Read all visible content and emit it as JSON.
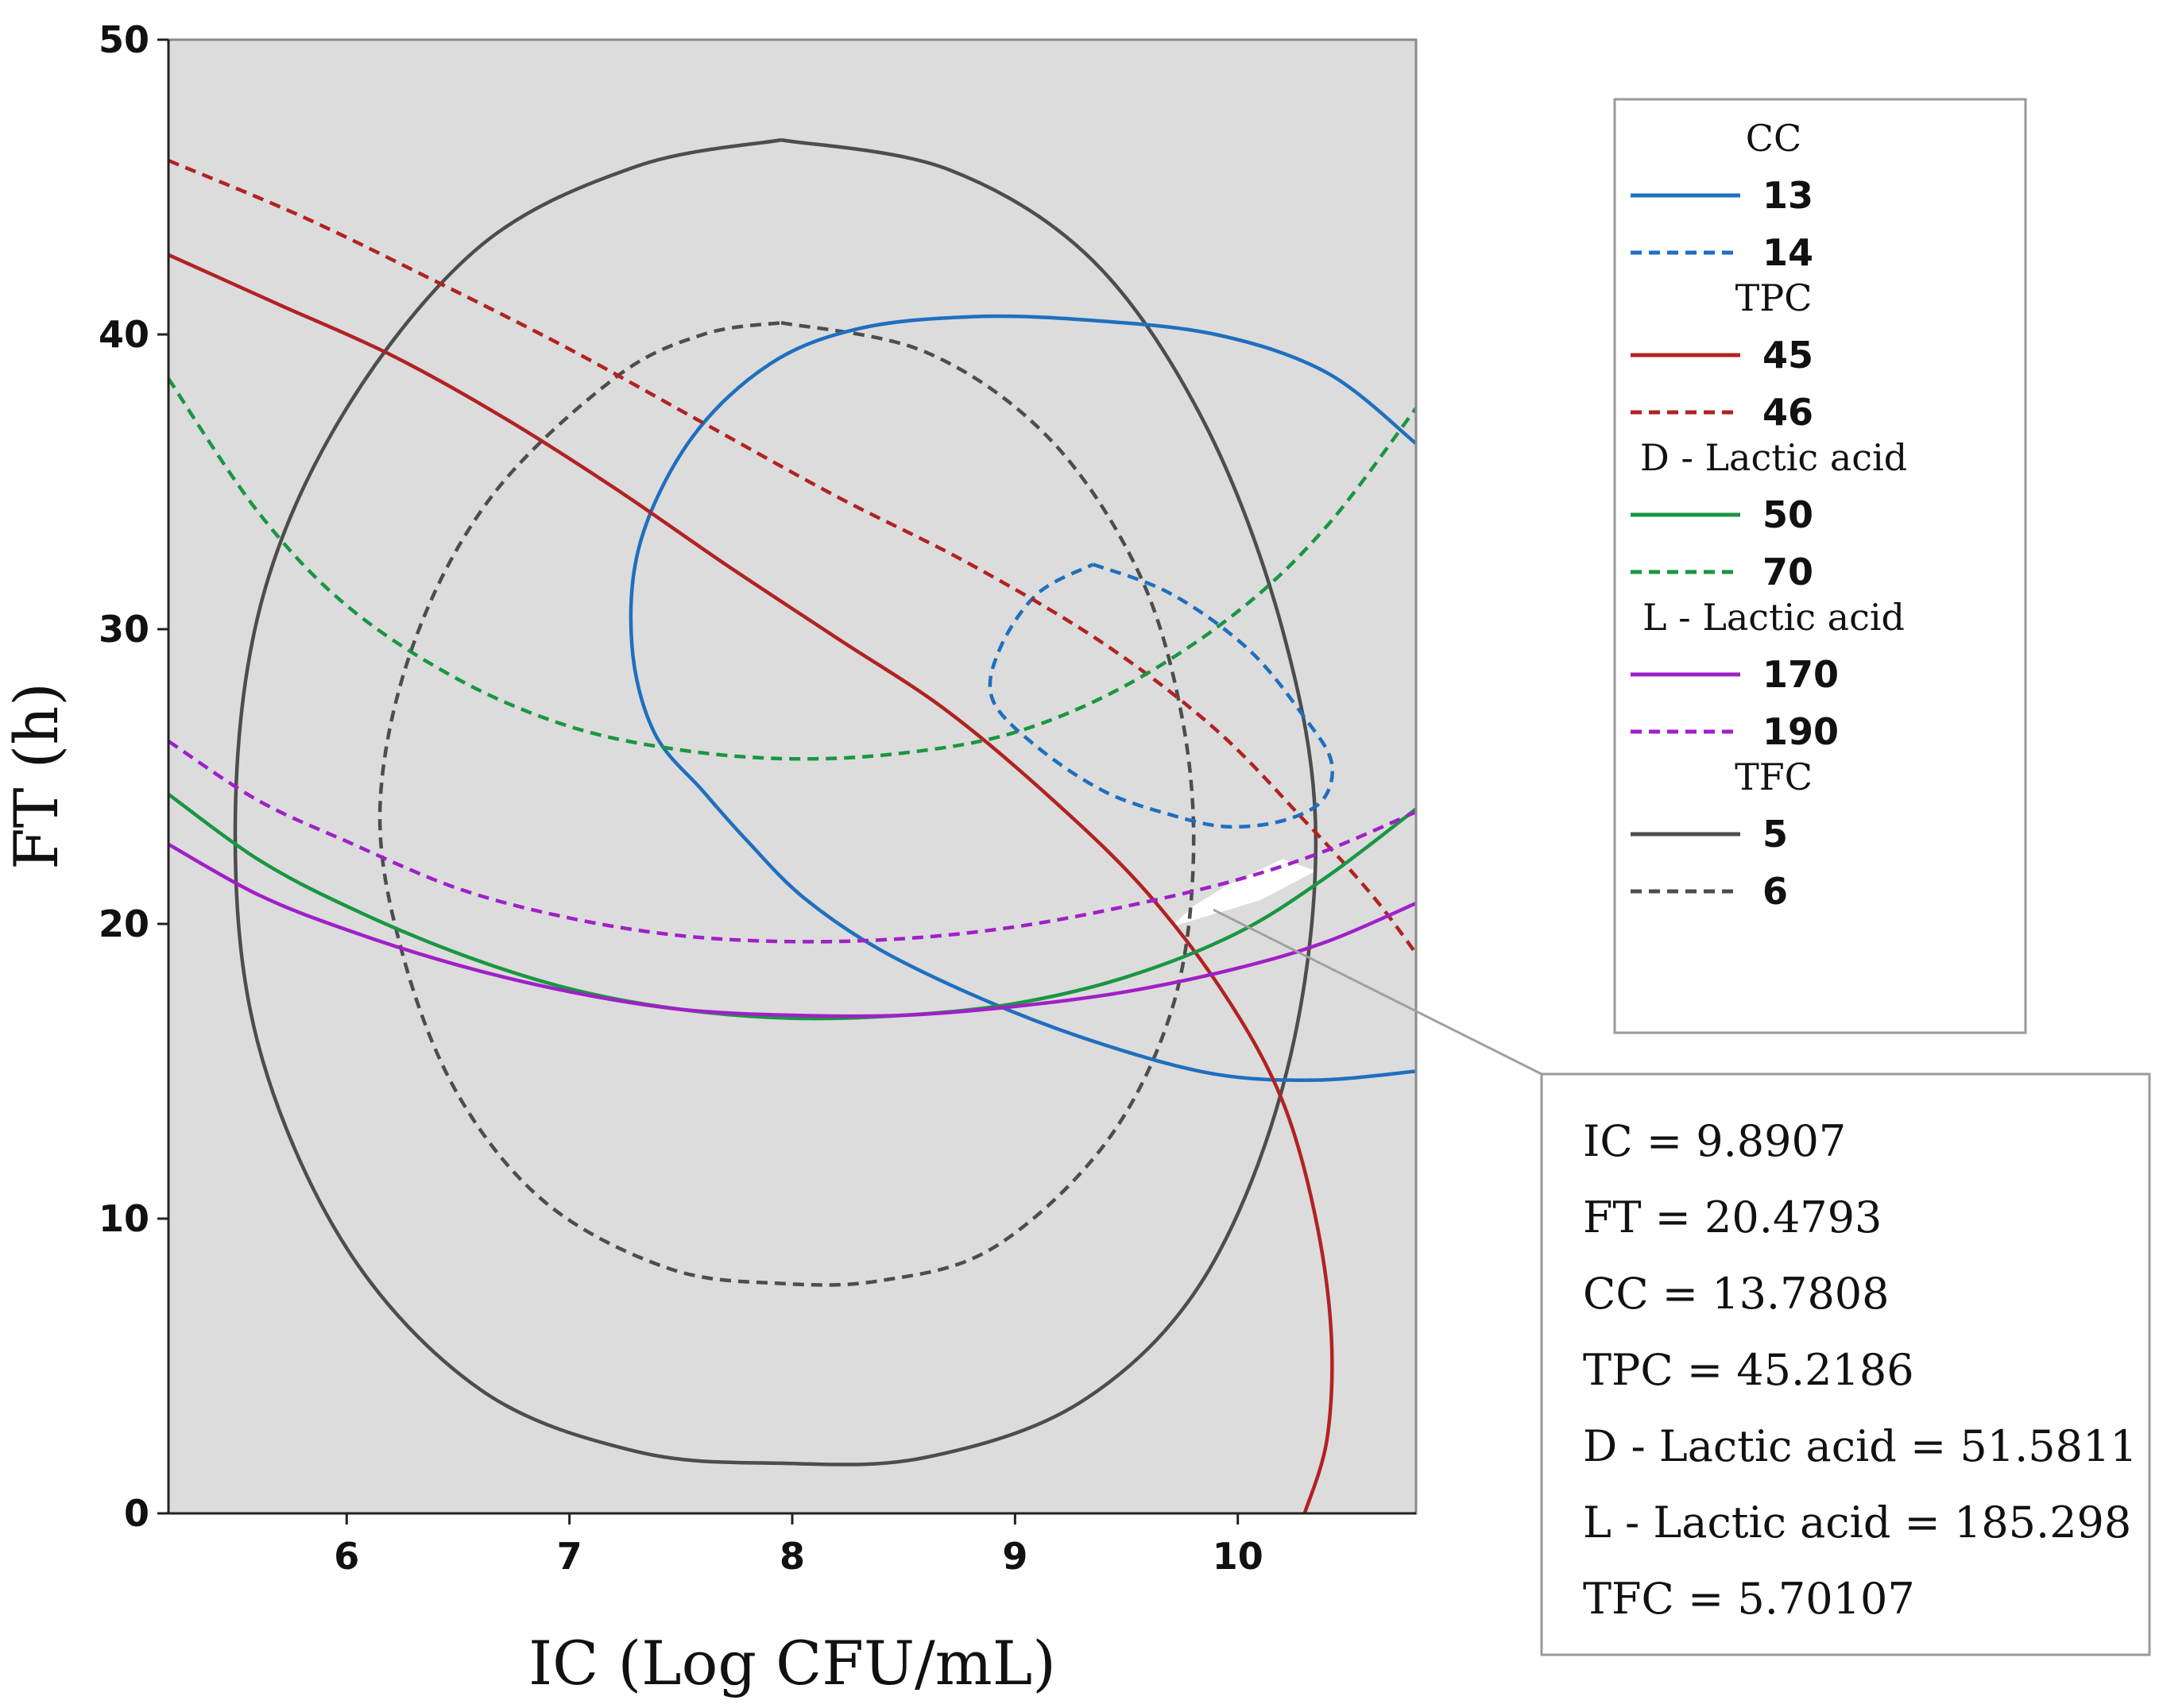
{
  "chart_data": {
    "type": "contour-overlay",
    "xlabel": "IC (Log CFU/mL)",
    "ylabel": "FT (h)",
    "xlim": [
      5.2,
      10.8
    ],
    "ylim": [
      0,
      50
    ],
    "x_ticks": [
      "6",
      "7",
      "8",
      "9",
      "10"
    ],
    "x_tick_values": [
      6,
      7,
      8,
      9,
      10
    ],
    "y_ticks": [
      "0",
      "10",
      "20",
      "30",
      "40",
      "50"
    ],
    "y_tick_values": [
      0,
      10,
      20,
      30,
      40,
      50
    ],
    "grid": false,
    "colors": {
      "cc": "#1f6fbf",
      "tpc": "#b22222",
      "dla": "#1a9641",
      "lla": "#a020c8",
      "tfc": "#4d4d4d",
      "plot_bg": "#dcdcdc"
    },
    "legend": [
      {
        "group": "CC",
        "items": [
          {
            "value": "13",
            "style": "solid"
          },
          {
            "value": "14",
            "style": "dashed"
          }
        ],
        "color": "cc"
      },
      {
        "group": "TPC",
        "items": [
          {
            "value": "45",
            "style": "solid"
          },
          {
            "value": "46",
            "style": "dashed"
          }
        ],
        "color": "tpc"
      },
      {
        "group": "D - Lactic acid",
        "items": [
          {
            "value": "50",
            "style": "solid"
          },
          {
            "value": "70",
            "style": "dashed"
          }
        ],
        "color": "dla"
      },
      {
        "group": "L - Lactic acid",
        "items": [
          {
            "value": "170",
            "style": "solid"
          },
          {
            "value": "190",
            "style": "dashed"
          }
        ],
        "color": "lla"
      },
      {
        "group": "TFC",
        "items": [
          {
            "value": "5",
            "style": "solid"
          },
          {
            "value": "6",
            "style": "dashed"
          }
        ],
        "color": "tfc"
      }
    ],
    "series": [
      {
        "name": "TFC = 5",
        "color": "tfc",
        "style": "solid",
        "points": [
          [
            7.95,
            46.6
          ],
          [
            8.7,
            45.6
          ],
          [
            9.35,
            42.5
          ],
          [
            9.85,
            37
          ],
          [
            10.2,
            30
          ],
          [
            10.35,
            23
          ],
          [
            10.22,
            15
          ],
          [
            9.85,
            8
          ],
          [
            9.3,
            3.8
          ],
          [
            8.6,
            1.9
          ],
          [
            7.95,
            1.7
          ],
          [
            7.3,
            2.1
          ],
          [
            6.6,
            4.2
          ],
          [
            6,
            9
          ],
          [
            5.6,
            16
          ],
          [
            5.5,
            23.5
          ],
          [
            5.62,
            31
          ],
          [
            6,
            37.5
          ],
          [
            6.6,
            43
          ],
          [
            7.3,
            45.7
          ],
          [
            7.95,
            46.6
          ]
        ]
      },
      {
        "name": "TFC = 6",
        "color": "tfc",
        "style": "dashed",
        "points": [
          [
            7.95,
            40.4
          ],
          [
            8.6,
            39.4
          ],
          [
            9.15,
            36.5
          ],
          [
            9.55,
            32
          ],
          [
            9.75,
            27
          ],
          [
            9.8,
            22
          ],
          [
            9.7,
            17
          ],
          [
            9.4,
            12.5
          ],
          [
            8.9,
            9
          ],
          [
            8.4,
            7.9
          ],
          [
            7.95,
            7.8
          ],
          [
            7.45,
            8.3
          ],
          [
            6.9,
            10.5
          ],
          [
            6.5,
            14.2
          ],
          [
            6.25,
            19
          ],
          [
            6.15,
            24
          ],
          [
            6.3,
            29.5
          ],
          [
            6.65,
            34.5
          ],
          [
            7.2,
            38.5
          ],
          [
            7.6,
            40
          ],
          [
            7.95,
            40.4
          ]
        ]
      },
      {
        "name": "CC = 13",
        "color": "cc",
        "style": "solid",
        "points": [
          [
            10.8,
            36.3
          ],
          [
            10.4,
            38.7
          ],
          [
            9.9,
            40
          ],
          [
            9.3,
            40.5
          ],
          [
            8.8,
            40.6
          ],
          [
            8.3,
            40.2
          ],
          [
            7.9,
            39
          ],
          [
            7.55,
            36.5
          ],
          [
            7.32,
            33
          ],
          [
            7.28,
            29.5
          ],
          [
            7.38,
            26.5
          ],
          [
            7.6,
            24.5
          ],
          [
            7.8,
            22.8
          ],
          [
            8.05,
            20.9
          ],
          [
            8.4,
            19.1
          ],
          [
            8.9,
            17.3
          ],
          [
            9.4,
            15.9
          ],
          [
            9.9,
            14.9
          ],
          [
            10.35,
            14.7
          ],
          [
            10.8,
            15
          ]
        ]
      },
      {
        "name": "CC = 14",
        "color": "cc",
        "style": "dashed",
        "points": [
          [
            9.35,
            32.2
          ],
          [
            9.7,
            31.2
          ],
          [
            10.05,
            29.3
          ],
          [
            10.3,
            27
          ],
          [
            10.42,
            25.5
          ],
          [
            10.38,
            24.2
          ],
          [
            10.2,
            23.5
          ],
          [
            9.95,
            23.3
          ],
          [
            9.7,
            23.7
          ],
          [
            9.4,
            24.5
          ],
          [
            9.1,
            26
          ],
          [
            8.9,
            27.6
          ],
          [
            8.93,
            29.3
          ],
          [
            9.1,
            31.2
          ],
          [
            9.35,
            32.2
          ]
        ]
      },
      {
        "name": "TPC = 45",
        "color": "tpc",
        "style": "solid",
        "points": [
          [
            5.2,
            42.7
          ],
          [
            5.7,
            41
          ],
          [
            6.2,
            39.3
          ],
          [
            6.7,
            37.2
          ],
          [
            7.2,
            34.8
          ],
          [
            7.7,
            32.2
          ],
          [
            8.2,
            29.7
          ],
          [
            8.7,
            27.2
          ],
          [
            9.2,
            24
          ],
          [
            9.6,
            21
          ],
          [
            9.95,
            17.5
          ],
          [
            10.2,
            14
          ],
          [
            10.35,
            10
          ],
          [
            10.42,
            6
          ],
          [
            10.4,
            2.5
          ],
          [
            10.3,
            0
          ]
        ]
      },
      {
        "name": "TPC = 46",
        "color": "tpc",
        "style": "dashed",
        "points": [
          [
            5.2,
            45.9
          ],
          [
            5.8,
            44
          ],
          [
            6.4,
            41.8
          ],
          [
            7,
            39.5
          ],
          [
            7.6,
            37
          ],
          [
            8.2,
            34.5
          ],
          [
            8.8,
            32.2
          ],
          [
            9.4,
            29.5
          ],
          [
            9.9,
            26.6
          ],
          [
            10.3,
            23.5
          ],
          [
            10.6,
            21
          ],
          [
            10.8,
            19
          ]
        ]
      },
      {
        "name": "D - Lactic acid = 50",
        "color": "dla",
        "style": "solid",
        "points": [
          [
            5.2,
            24.4
          ],
          [
            5.6,
            22.2
          ],
          [
            6,
            20.6
          ],
          [
            6.5,
            19
          ],
          [
            7,
            17.8
          ],
          [
            7.5,
            17.1
          ],
          [
            8,
            16.8
          ],
          [
            8.5,
            16.9
          ],
          [
            9,
            17.3
          ],
          [
            9.5,
            18.2
          ],
          [
            10,
            19.7
          ],
          [
            10.4,
            21.6
          ],
          [
            10.8,
            23.9
          ]
        ]
      },
      {
        "name": "D - Lactic acid = 70",
        "color": "dla",
        "style": "dashed",
        "points": [
          [
            5.2,
            38.5
          ],
          [
            5.6,
            34
          ],
          [
            6,
            30.8
          ],
          [
            6.5,
            28.3
          ],
          [
            7,
            26.7
          ],
          [
            7.5,
            25.9
          ],
          [
            8,
            25.6
          ],
          [
            8.5,
            25.8
          ],
          [
            9,
            26.5
          ],
          [
            9.5,
            28.1
          ],
          [
            10,
            30.6
          ],
          [
            10.4,
            33.5
          ],
          [
            10.8,
            37.5
          ]
        ]
      },
      {
        "name": "L - Lactic acid = 170",
        "color": "lla",
        "style": "solid",
        "points": [
          [
            5.2,
            22.7
          ],
          [
            5.6,
            21
          ],
          [
            6,
            19.8
          ],
          [
            6.5,
            18.6
          ],
          [
            7,
            17.7
          ],
          [
            7.5,
            17.1
          ],
          [
            8,
            16.9
          ],
          [
            8.5,
            16.9
          ],
          [
            9,
            17.2
          ],
          [
            9.5,
            17.7
          ],
          [
            10,
            18.5
          ],
          [
            10.4,
            19.4
          ],
          [
            10.8,
            20.7
          ]
        ]
      },
      {
        "name": "L - Lactic acid = 190",
        "color": "lla",
        "style": "dashed",
        "points": [
          [
            5.2,
            26.2
          ],
          [
            5.6,
            24.2
          ],
          [
            6,
            22.8
          ],
          [
            6.5,
            21.2
          ],
          [
            7,
            20.2
          ],
          [
            7.5,
            19.6
          ],
          [
            8,
            19.4
          ],
          [
            8.5,
            19.5
          ],
          [
            9,
            19.9
          ],
          [
            9.5,
            20.6
          ],
          [
            10,
            21.5
          ],
          [
            10.4,
            22.5
          ],
          [
            10.8,
            23.8
          ]
        ]
      }
    ],
    "feasible_region_points": [
      [
        9.7,
        19.9
      ],
      [
        10.1,
        20.8
      ],
      [
        10.35,
        21.8
      ],
      [
        10.2,
        22.2
      ],
      [
        9.95,
        21.3
      ],
      [
        9.8,
        20.6
      ],
      [
        9.7,
        19.9
      ]
    ],
    "annotation": {
      "target": [
        9.8907,
        20.4793
      ],
      "lines": [
        "IC  = 9.8907",
        "FT  = 20.4793",
        "CC = 13.7808",
        "TPC = 45.2186",
        "D - Lactic acid = 51.5811",
        "L - Lactic acid = 185.298",
        "TFC = 5.70107"
      ]
    }
  }
}
